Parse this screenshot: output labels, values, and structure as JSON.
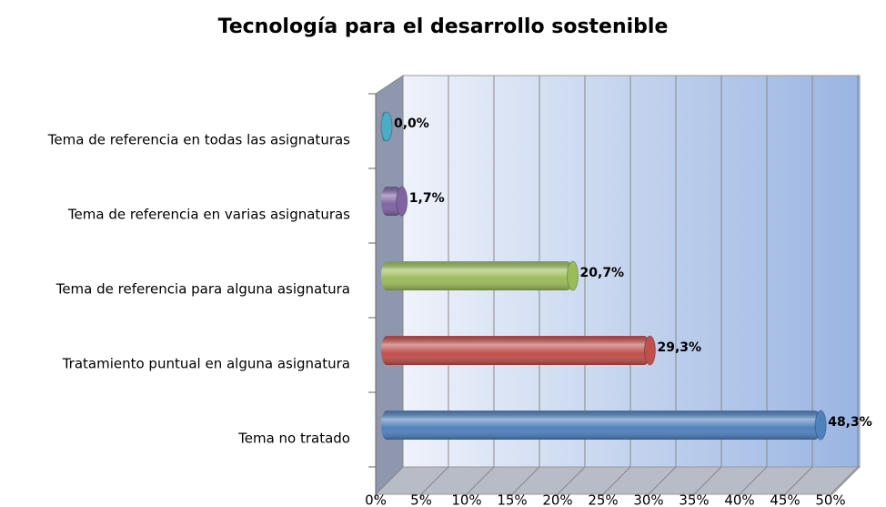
{
  "chart_data": {
    "type": "bar",
    "orientation": "horizontal",
    "title": "Tecnología para el desarrollo sostenible",
    "categories": [
      "Tema de referencia en todas las asignaturas",
      "Tema de referencia en varias asignaturas",
      "Tema de referencia para alguna asignatura",
      "Tratamiento puntual en alguna asignatura",
      "Tema no tratado"
    ],
    "values": [
      0.0,
      1.7,
      20.7,
      29.3,
      48.3
    ],
    "value_labels": [
      "0,0%",
      "1,7%",
      "20,7%",
      "29,3%",
      "48,3%"
    ],
    "colors": [
      "#4bacc6",
      "#8064a2",
      "#9bbb59",
      "#c0504d",
      "#4f81bd"
    ],
    "xlim": [
      0,
      50
    ],
    "xticks": [
      {
        "value": 0,
        "label": "0%"
      },
      {
        "value": 5,
        "label": "5%"
      },
      {
        "value": 10,
        "label": "10%"
      },
      {
        "value": 15,
        "label": "15%"
      },
      {
        "value": 20,
        "label": "20%"
      },
      {
        "value": 25,
        "label": "25%"
      },
      {
        "value": 30,
        "label": "30%"
      },
      {
        "value": 35,
        "label": "35%"
      },
      {
        "value": 40,
        "label": "40%"
      },
      {
        "value": 45,
        "label": "45%"
      },
      {
        "value": 50,
        "label": "50%"
      }
    ],
    "grid": true
  }
}
